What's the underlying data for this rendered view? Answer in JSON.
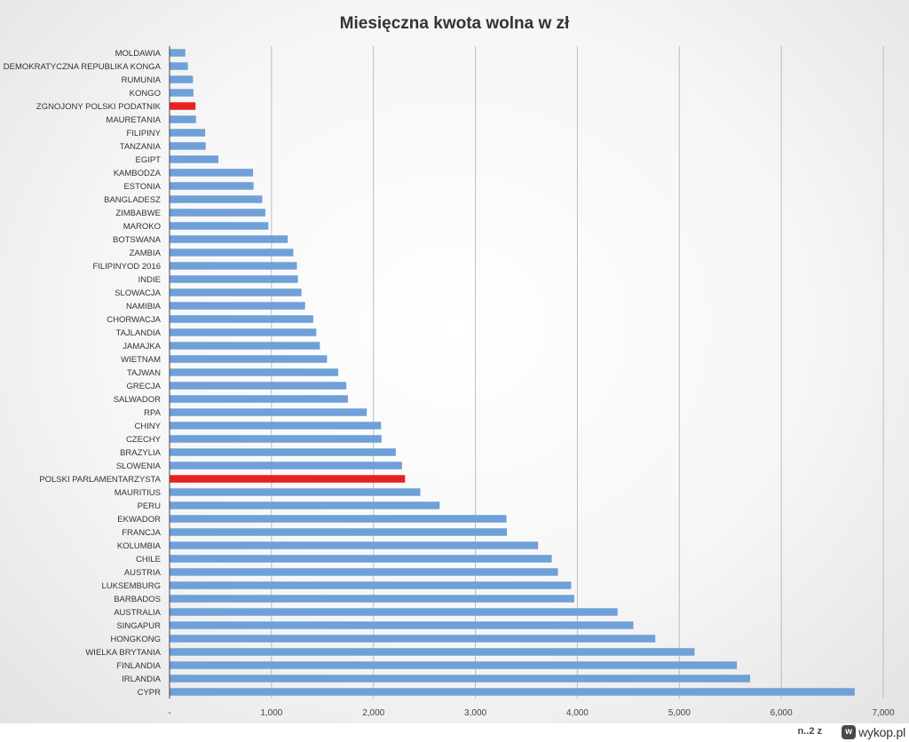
{
  "chart_data": {
    "type": "bar",
    "orientation": "horizontal",
    "title": "Miesięczna kwota wolna w zł",
    "xlim": [
      0,
      7000
    ],
    "x_ticks": [
      "-",
      "1,000",
      "2,000",
      "3,000",
      "4,000",
      "5,000",
      "6,000",
      "7,000"
    ],
    "grid": "vertical",
    "default_color": "#6fa0d8",
    "highlight_color": "#e8211f",
    "categories": [
      "MOLDAWIA",
      "DEMOKRATYCZNA REPUBLIKA KONGA",
      "RUMUNIA",
      "KONGO",
      "ZGNOJONY POLSKI PODATNIK",
      "MAURETANIA",
      "FILIPINY",
      "TANZANIA",
      "EGIPT",
      "KAMBODZA",
      "ESTONIA",
      "BANGLADESZ",
      "ZIMBABWE",
      "MAROKO",
      "BOTSWANA",
      "ZAMBIA",
      "FILIPINYOD 2016",
      "INDIE",
      "SLOWACJA",
      "NAMIBIA",
      "CHORWACJA",
      "TAJLANDIA",
      "JAMAJKA",
      "WIETNAM",
      "TAJWAN",
      "GRECJA",
      "SALWADOR",
      "RPA",
      "CHINY",
      "CZECHY",
      "BRAZYLIA",
      "SLOWENIA",
      "POLSKI PARLAMENTARZYSTA",
      "MAURITIUS",
      "PERU",
      "EKWADOR",
      "FRANCJA",
      "KOLUMBIA",
      "CHILE",
      "AUSTRIA",
      "LUKSEMBURG",
      "BARBADOS",
      "AUSTRALIA",
      "SINGAPUR",
      "HONGKONG",
      "WIELKA BRYTANIA",
      "FINLANDIA",
      "IRLANDIA",
      "CYPR"
    ],
    "values": [
      150,
      175,
      225,
      230,
      250,
      255,
      345,
      350,
      475,
      815,
      820,
      905,
      935,
      965,
      1155,
      1210,
      1245,
      1255,
      1290,
      1325,
      1405,
      1435,
      1470,
      1540,
      1650,
      1730,
      1745,
      1930,
      2070,
      2075,
      2215,
      2275,
      2305,
      2455,
      2645,
      3300,
      3305,
      3610,
      3745,
      3805,
      3935,
      3965,
      4390,
      4545,
      4760,
      5145,
      5560,
      5690,
      6715
    ],
    "highlighted": [
      "ZGNOJONY POLSKI PODATNIK",
      "POLSKI PARLAMENTARZYSTA"
    ]
  },
  "footer": {
    "note": "n..2 z",
    "logo_badge": "w",
    "logo_text": "wykop.pl"
  }
}
